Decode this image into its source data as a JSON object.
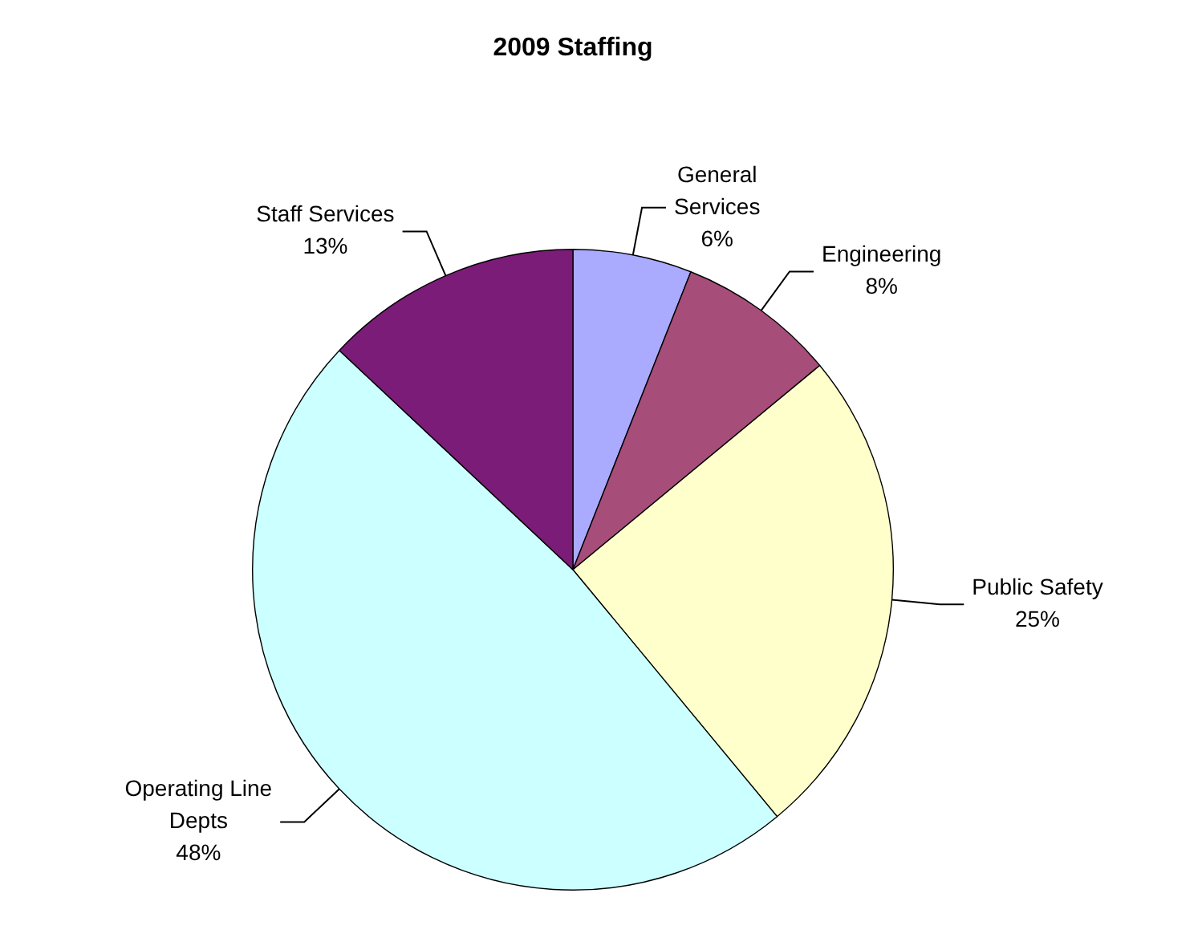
{
  "chart_data": {
    "type": "pie",
    "title": "2009 Staffing",
    "categories": [
      "General Services",
      "Engineering",
      "Public Safety",
      "Operating Line Depts",
      "Staff Services"
    ],
    "values": [
      6,
      8,
      25,
      48,
      13
    ],
    "value_labels": [
      "6%",
      "8%",
      "25%",
      "48%",
      "13%"
    ],
    "colors": [
      "#aaaaff",
      "#a64d79",
      "#ffffcc",
      "#ccffff",
      "#7b1c78"
    ],
    "legend": false
  }
}
